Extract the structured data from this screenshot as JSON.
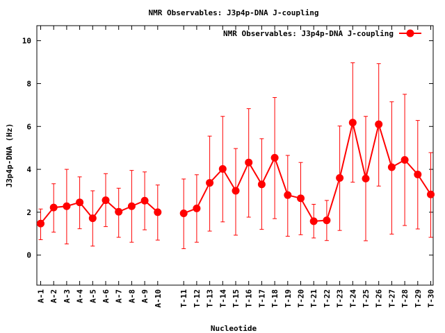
{
  "chart_data": {
    "type": "line",
    "title": "NMR Observables: J3p4p-DNA J-coupling",
    "xlabel": "Nucleotide",
    "ylabel": "J3p4p-DNA (Hz)",
    "ylim": [
      -1.4,
      10.7
    ],
    "yticks": [
      0,
      2,
      4,
      6,
      8,
      10
    ],
    "grid": false,
    "legend_position": "top-right",
    "series": [
      {
        "name": "NMR Observables: J3p4p-DNA J-coupling",
        "color": "#ff0000",
        "segments": [
          {
            "categories": [
              "A-1",
              "A-2",
              "A-3",
              "A-4",
              "A-5",
              "A-6",
              "A-7",
              "A-8",
              "A-9",
              "A-10"
            ],
            "values": [
              1.47,
              2.22,
              2.28,
              2.46,
              1.72,
              2.56,
              2.02,
              2.28,
              2.54,
              2.0
            ],
            "error_low": [
              0.72,
              1.07,
              0.52,
              1.23,
              0.42,
              1.33,
              0.83,
              0.6,
              1.18,
              0.7
            ],
            "error_high": [
              2.15,
              3.33,
              4.0,
              3.65,
              3.0,
              3.8,
              3.12,
              3.95,
              3.88,
              3.27
            ]
          },
          {
            "categories": [
              "T-11",
              "T-12",
              "T-13",
              "T-14",
              "T-15",
              "T-16",
              "T-17",
              "T-18",
              "T-19",
              "T-20",
              "T-21",
              "T-22",
              "T-23",
              "T-24",
              "T-25",
              "T-26",
              "T-27",
              "T-28",
              "T-29",
              "T-30"
            ],
            "values": [
              1.95,
              2.18,
              3.37,
              4.02,
              3.0,
              4.32,
              3.3,
              4.54,
              2.8,
              2.65,
              1.58,
              1.62,
              3.6,
              6.18,
              3.57,
              6.1,
              4.1,
              4.44,
              3.76,
              2.83
            ],
            "error_low": [
              0.3,
              0.6,
              1.12,
              1.55,
              0.93,
              1.77,
              1.2,
              1.7,
              0.88,
              0.95,
              0.8,
              0.68,
              1.15,
              3.4,
              0.67,
              3.22,
              0.98,
              1.38,
              1.22,
              0.83
            ],
            "error_high": [
              3.55,
              3.75,
              5.55,
              6.47,
              4.97,
              6.83,
              5.43,
              7.35,
              4.65,
              4.32,
              2.37,
              2.55,
              6.02,
              8.97,
              6.47,
              8.93,
              7.15,
              7.5,
              6.28,
              4.78
            ]
          }
        ]
      }
    ]
  }
}
